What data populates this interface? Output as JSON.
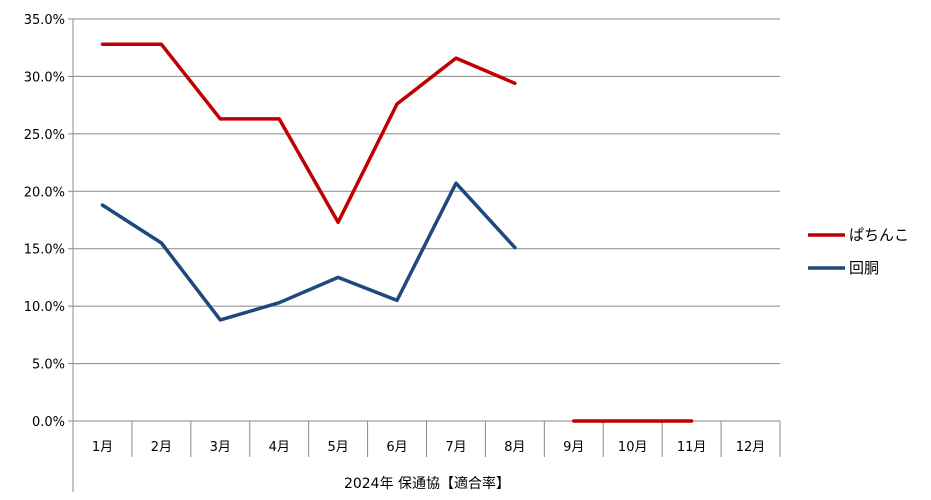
{
  "chart_data": {
    "type": "line",
    "xlabel": "2024年 保通協【適合率】",
    "categories": [
      "1月",
      "2月",
      "3月",
      "4月",
      "5月",
      "6月",
      "7月",
      "8月",
      "9月",
      "10月",
      "11月",
      "12月"
    ],
    "y_tick_labels": [
      "0.0%",
      "5.0%",
      "10.0%",
      "15.0%",
      "20.0%",
      "25.0%",
      "30.0%",
      "35.0%"
    ],
    "ylim": [
      0,
      35
    ],
    "grid": true,
    "legend_position": "right",
    "series": [
      {
        "name": "ぱちんこ",
        "color": "#c00000",
        "segments": [
          {
            "start": 0,
            "values": [
              32.8,
              32.8,
              26.3,
              26.3,
              17.3,
              27.6,
              31.6,
              29.4
            ]
          },
          {
            "start": 8,
            "values": [
              0.0,
              0.0,
              0.0
            ]
          }
        ]
      },
      {
        "name": "回胴",
        "color": "#1f497d",
        "segments": [
          {
            "start": 0,
            "values": [
              18.8,
              15.5,
              8.8,
              10.3,
              12.5,
              10.5,
              20.7,
              15.1
            ]
          }
        ]
      }
    ]
  }
}
